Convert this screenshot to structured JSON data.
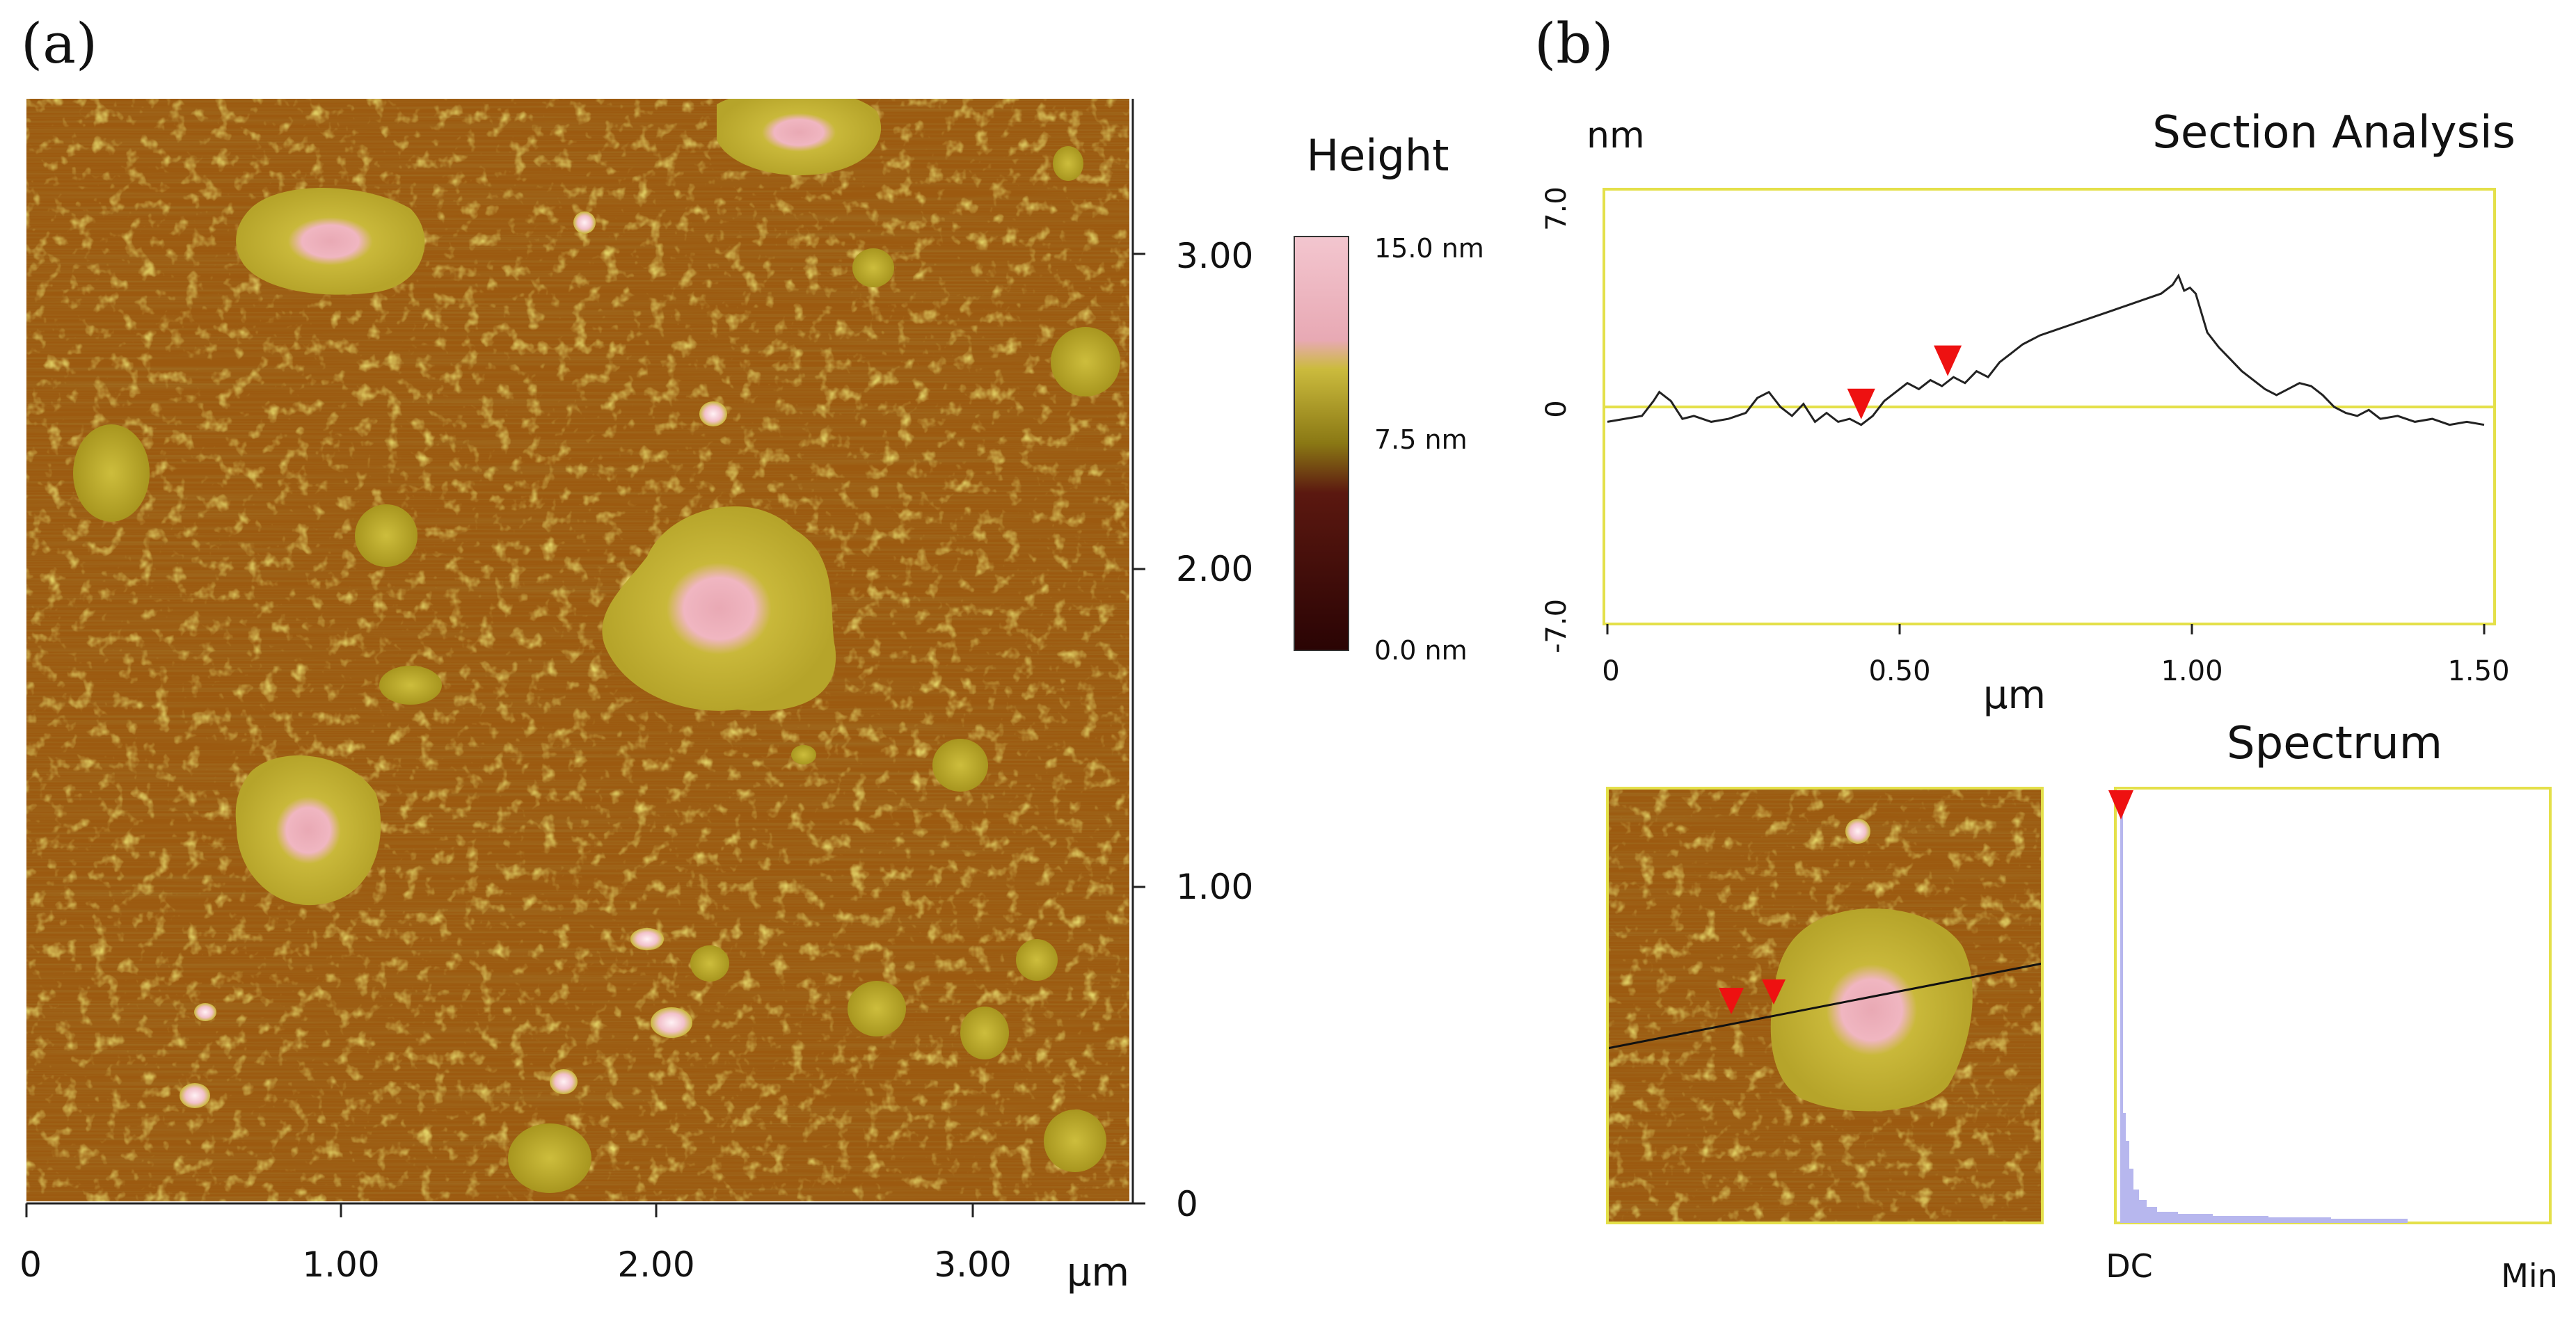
{
  "panel_a": {
    "label": "(a)",
    "y_ticks": [
      "3.00",
      "2.00",
      "1.00",
      "0"
    ],
    "x_ticks": [
      "0",
      "1.00",
      "2.00",
      "3.00"
    ],
    "x_unit": "μm",
    "colorbar": {
      "title": "Height",
      "max_label": "15.0 nm",
      "mid_label": "7.5 nm",
      "min_label": "0.0 nm",
      "colors": [
        "#f4c3cf",
        "#e9a9b4",
        "#c8b838",
        "#8b7a13",
        "#5a140c",
        "#2a0404"
      ]
    }
  },
  "panel_b": {
    "label": "(b)",
    "section": {
      "title": "Section Analysis",
      "y_unit": "nm",
      "y_ticks": [
        "7.0",
        "0",
        "-7.0"
      ],
      "x_ticks": [
        "0",
        "0.50",
        "1.00",
        "1.50"
      ],
      "x_unit": "μm",
      "ylim": [
        -7.0,
        7.0
      ],
      "xlim": [
        0,
        1.52
      ],
      "marker_x": [
        0.44,
        0.59
      ],
      "profile": [
        [
          0.0,
          -0.5
        ],
        [
          0.03,
          -0.4
        ],
        [
          0.06,
          -0.3
        ],
        [
          0.08,
          0.2
        ],
        [
          0.09,
          0.5
        ],
        [
          0.11,
          0.2
        ],
        [
          0.13,
          -0.4
        ],
        [
          0.15,
          -0.3
        ],
        [
          0.18,
          -0.5
        ],
        [
          0.21,
          -0.4
        ],
        [
          0.24,
          -0.2
        ],
        [
          0.26,
          0.3
        ],
        [
          0.28,
          0.5
        ],
        [
          0.3,
          0.0
        ],
        [
          0.32,
          -0.3
        ],
        [
          0.34,
          0.1
        ],
        [
          0.36,
          -0.5
        ],
        [
          0.38,
          -0.2
        ],
        [
          0.4,
          -0.5
        ],
        [
          0.42,
          -0.4
        ],
        [
          0.44,
          -0.6
        ],
        [
          0.46,
          -0.3
        ],
        [
          0.48,
          0.2
        ],
        [
          0.5,
          0.5
        ],
        [
          0.52,
          0.8
        ],
        [
          0.54,
          0.6
        ],
        [
          0.56,
          0.9
        ],
        [
          0.58,
          0.7
        ],
        [
          0.6,
          1.0
        ],
        [
          0.62,
          0.8
        ],
        [
          0.64,
          1.2
        ],
        [
          0.66,
          1.0
        ],
        [
          0.68,
          1.5
        ],
        [
          0.7,
          1.8
        ],
        [
          0.72,
          2.1
        ],
        [
          0.75,
          2.4
        ],
        [
          0.78,
          2.6
        ],
        [
          0.81,
          2.8
        ],
        [
          0.84,
          3.0
        ],
        [
          0.87,
          3.2
        ],
        [
          0.9,
          3.4
        ],
        [
          0.93,
          3.6
        ],
        [
          0.96,
          3.8
        ],
        [
          0.98,
          4.1
        ],
        [
          0.99,
          4.4
        ],
        [
          1.0,
          3.9
        ],
        [
          1.01,
          4.0
        ],
        [
          1.02,
          3.8
        ],
        [
          1.04,
          2.5
        ],
        [
          1.06,
          2.0
        ],
        [
          1.08,
          1.6
        ],
        [
          1.1,
          1.2
        ],
        [
          1.12,
          0.9
        ],
        [
          1.14,
          0.6
        ],
        [
          1.16,
          0.4
        ],
        [
          1.18,
          0.6
        ],
        [
          1.2,
          0.8
        ],
        [
          1.22,
          0.7
        ],
        [
          1.24,
          0.4
        ],
        [
          1.26,
          0.0
        ],
        [
          1.28,
          -0.2
        ],
        [
          1.3,
          -0.3
        ],
        [
          1.32,
          -0.1
        ],
        [
          1.34,
          -0.4
        ],
        [
          1.37,
          -0.3
        ],
        [
          1.4,
          -0.5
        ],
        [
          1.43,
          -0.4
        ],
        [
          1.46,
          -0.6
        ],
        [
          1.49,
          -0.5
        ],
        [
          1.52,
          -0.6
        ]
      ]
    },
    "spectrum": {
      "title": "Spectrum",
      "x_label_left": "DC",
      "x_label_right": "Min"
    }
  }
}
